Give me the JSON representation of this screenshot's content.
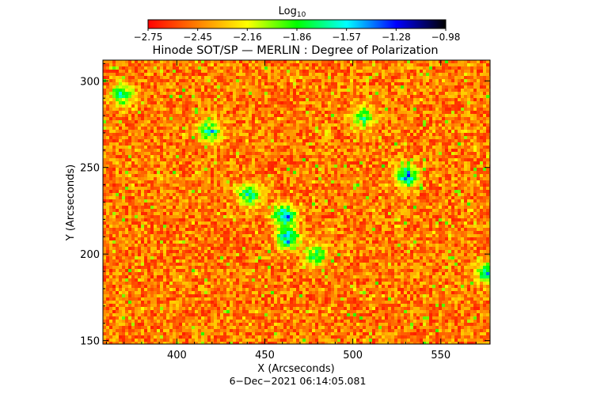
{
  "chart_data": {
    "type": "heatmap",
    "title": "Hinode SOT/SP — MERLIN : Degree of Polarization",
    "xlabel": "X (Arcseconds)",
    "ylabel": "Y (Arcseconds)",
    "timestamp": "6−Dec−2021 06:14:05.081",
    "xlim": [
      358,
      578
    ],
    "ylim": [
      148,
      312
    ],
    "x_ticks": [
      400,
      450,
      500,
      550
    ],
    "y_ticks": [
      150,
      200,
      250,
      300
    ],
    "colorbar": {
      "title": "Log",
      "title_subscript": "10",
      "range": [
        -2.75,
        -0.98
      ],
      "tick_labels": [
        "−2.75",
        "−2.45",
        "−2.16",
        "−1.86",
        "−1.57",
        "−1.28",
        "−0.98"
      ],
      "colors": [
        "#ff0000",
        "#ff8000",
        "#ffff00",
        "#00ff00",
        "#00ffff",
        "#0000ff",
        "#000000"
      ]
    },
    "high_polarization_patches": [
      {
        "x": 460,
        "y": 223,
        "level": -1.3
      },
      {
        "x": 462,
        "y": 210,
        "level": -1.4
      },
      {
        "x": 530,
        "y": 246,
        "level": -1.4
      },
      {
        "x": 418,
        "y": 272,
        "level": -1.5
      },
      {
        "x": 440,
        "y": 235,
        "level": -1.6
      },
      {
        "x": 576,
        "y": 190,
        "level": -1.5
      },
      {
        "x": 368,
        "y": 293,
        "level": -1.6
      },
      {
        "x": 478,
        "y": 200,
        "level": -1.7
      },
      {
        "x": 505,
        "y": 280,
        "level": -1.7
      }
    ]
  }
}
